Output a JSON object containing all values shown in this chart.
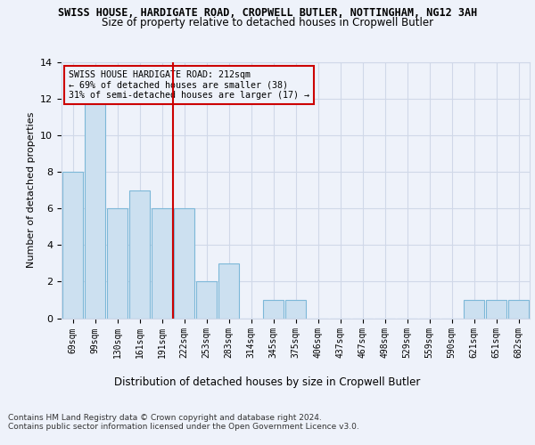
{
  "title_line1": "SWISS HOUSE, HARDIGATE ROAD, CROPWELL BUTLER, NOTTINGHAM, NG12 3AH",
  "title_line2": "Size of property relative to detached houses in Cropwell Butler",
  "xlabel": "Distribution of detached houses by size in Cropwell Butler",
  "ylabel": "Number of detached properties",
  "footer_line1": "Contains HM Land Registry data © Crown copyright and database right 2024.",
  "footer_line2": "Contains public sector information licensed under the Open Government Licence v3.0.",
  "annotation_line1": "SWISS HOUSE HARDIGATE ROAD: 212sqm",
  "annotation_line2": "← 69% of detached houses are smaller (38)",
  "annotation_line3": "31% of semi-detached houses are larger (17) →",
  "bar_labels": [
    "69sqm",
    "99sqm",
    "130sqm",
    "161sqm",
    "191sqm",
    "222sqm",
    "253sqm",
    "283sqm",
    "314sqm",
    "345sqm",
    "375sqm",
    "406sqm",
    "437sqm",
    "467sqm",
    "498sqm",
    "529sqm",
    "559sqm",
    "590sqm",
    "621sqm",
    "651sqm",
    "682sqm"
  ],
  "bar_values": [
    8,
    12,
    6,
    7,
    6,
    6,
    2,
    3,
    0,
    1,
    1,
    0,
    0,
    0,
    0,
    0,
    0,
    0,
    1,
    1,
    1
  ],
  "bar_color": "#cce0f0",
  "bar_edge_color": "#7db8d8",
  "grid_color": "#d0d8e8",
  "ref_line_x": 4.5,
  "ref_line_color": "#cc0000",
  "annotation_box_color": "#cc0000",
  "ylim": [
    0,
    14
  ],
  "yticks": [
    0,
    2,
    4,
    6,
    8,
    10,
    12,
    14
  ],
  "background_color": "#eef2fa",
  "axes_bg_color": "#eef2fa"
}
